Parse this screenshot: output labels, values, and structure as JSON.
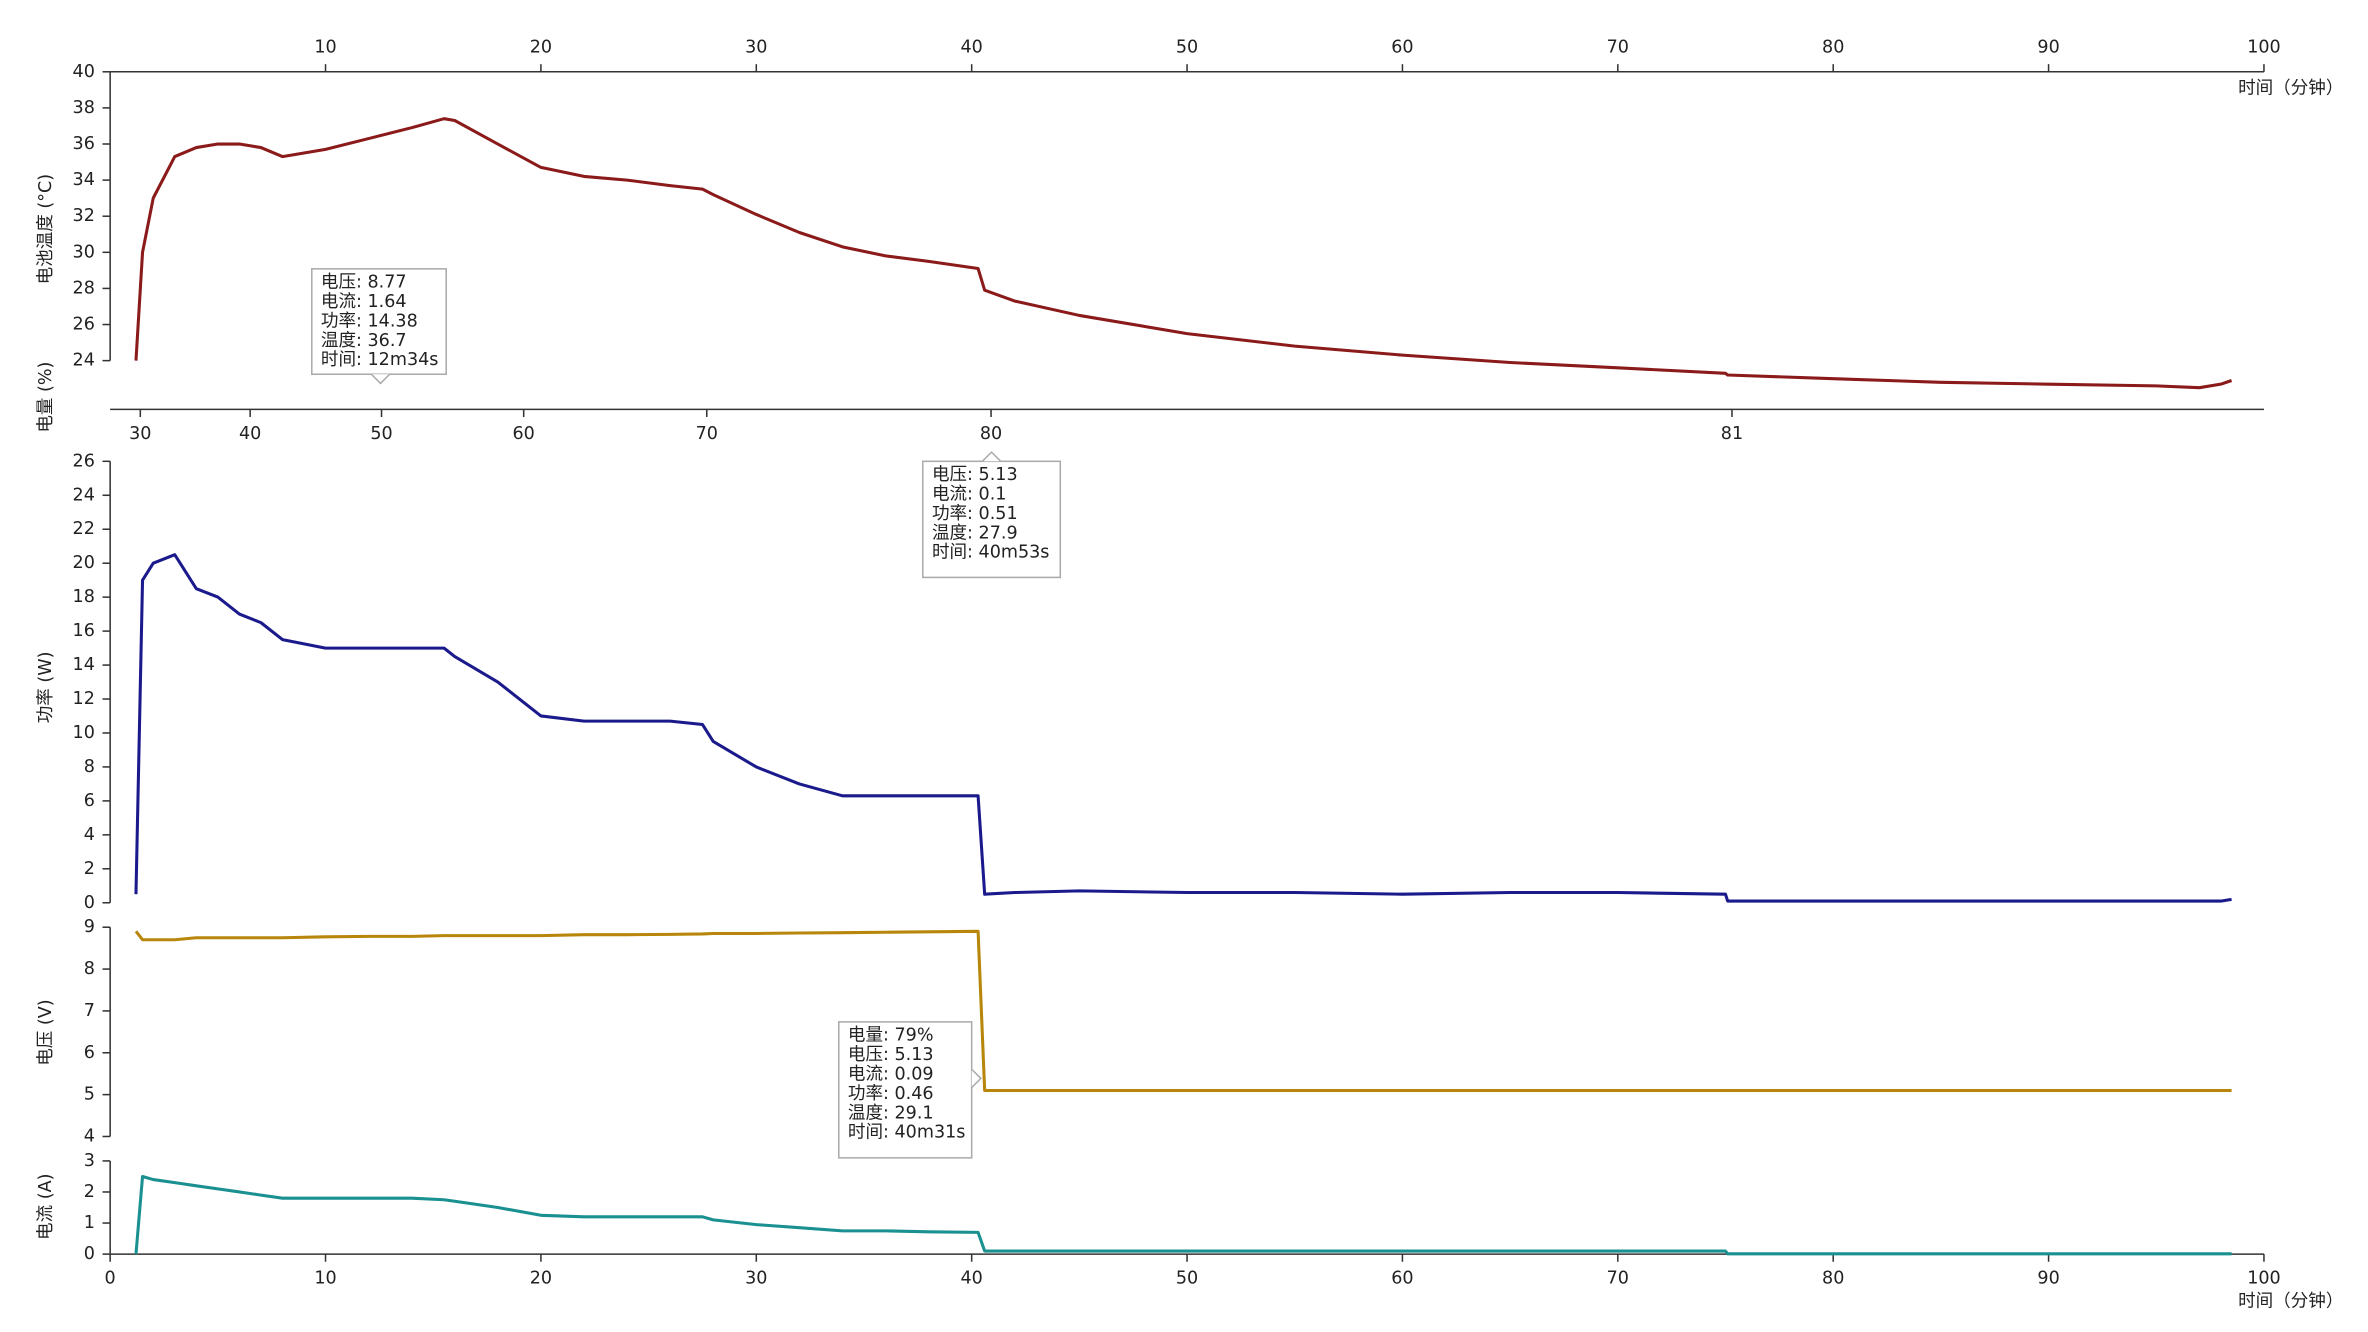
{
  "chart_data": [
    {
      "type": "line",
      "ylabel": "电池温度 (°C)",
      "xlabel": "时间（分钟）",
      "color": "#8b1a1a",
      "xlim": [
        0,
        100
      ],
      "xticks": [
        10,
        20,
        30,
        40,
        50,
        60,
        70,
        80,
        90,
        100
      ],
      "ylim": [
        21.3,
        40
      ],
      "yticks": [
        24,
        26,
        28,
        30,
        32,
        34,
        36,
        38,
        40
      ],
      "x": [
        1.2,
        1.5,
        2,
        3,
        4,
        5,
        6,
        7,
        8,
        10,
        12,
        14,
        15.5,
        16,
        18,
        20,
        22,
        24,
        26,
        27.5,
        28,
        30,
        32,
        34,
        36,
        38,
        40.3,
        40.6,
        42,
        45,
        50,
        55,
        60,
        65,
        70,
        75,
        75.1,
        80,
        85,
        90,
        95,
        97,
        98,
        98.5
      ],
      "values": [
        24,
        30,
        33,
        35.3,
        35.8,
        36,
        36,
        35.8,
        35.3,
        35.7,
        36.3,
        36.9,
        37.4,
        37.3,
        36,
        34.7,
        34.2,
        34,
        33.7,
        33.5,
        33.2,
        32.1,
        31.1,
        30.3,
        29.8,
        29.5,
        29.1,
        27.9,
        27.3,
        26.5,
        25.5,
        24.8,
        24.3,
        23.9,
        23.6,
        23.3,
        23.2,
        23,
        22.8,
        22.7,
        22.6,
        22.5,
        22.7,
        22.9
      ],
      "battery_axis": {
        "label": "电量 (%)",
        "x": [
          1.4,
          6.5,
          12.6,
          19.2,
          27.7,
          40.9,
          75.3
        ],
        "values": [
          30,
          40,
          50,
          60,
          70,
          80,
          81
        ]
      }
    },
    {
      "type": "line",
      "ylabel": "功率 (W)",
      "color": "#1a1a8c",
      "xlim": [
        0,
        100
      ],
      "ylim": [
        0,
        26
      ],
      "yticks": [
        0,
        2,
        4,
        6,
        8,
        10,
        12,
        14,
        16,
        18,
        20,
        22,
        24,
        26
      ],
      "x": [
        1.2,
        1.5,
        2,
        3,
        4,
        5,
        6,
        7,
        8,
        10,
        12,
        14,
        15.5,
        16,
        18,
        20,
        22,
        24,
        26,
        27.5,
        28,
        30,
        32,
        34,
        36,
        38,
        40.3,
        40.6,
        42,
        45,
        50,
        55,
        60,
        65,
        70,
        75,
        75.1,
        80,
        85,
        90,
        95,
        97,
        98,
        98.5
      ],
      "values": [
        0.5,
        19,
        20,
        20.5,
        18.5,
        18,
        17,
        16.5,
        15.5,
        15,
        15,
        15,
        15,
        14.5,
        13,
        11,
        10.7,
        10.7,
        10.7,
        10.5,
        9.5,
        8,
        7,
        6.3,
        6.3,
        6.3,
        6.3,
        0.5,
        0.6,
        0.7,
        0.6,
        0.6,
        0.5,
        0.6,
        0.6,
        0.5,
        0.1,
        0.1,
        0.1,
        0.1,
        0.1,
        0.1,
        0.1,
        0.2
      ]
    },
    {
      "type": "line",
      "ylabel": "电压 (V)",
      "color": "#b8860b",
      "xlim": [
        0,
        100
      ],
      "ylim": [
        4,
        9
      ],
      "yticks": [
        4,
        5,
        6,
        7,
        8,
        9
      ],
      "x": [
        1.2,
        1.5,
        2,
        3,
        4,
        5,
        6,
        7,
        8,
        10,
        12,
        14,
        15.5,
        16,
        18,
        20,
        22,
        24,
        26,
        27.5,
        28,
        30,
        32,
        34,
        36,
        38,
        40.3,
        40.6,
        42,
        45,
        50,
        55,
        60,
        65,
        70,
        75,
        75.1,
        80,
        85,
        90,
        95,
        97,
        98,
        98.5
      ],
      "values": [
        8.9,
        8.7,
        8.7,
        8.7,
        8.75,
        8.75,
        8.75,
        8.75,
        8.75,
        8.77,
        8.78,
        8.78,
        8.8,
        8.8,
        8.8,
        8.8,
        8.82,
        8.82,
        8.83,
        8.84,
        8.85,
        8.85,
        8.86,
        8.87,
        8.88,
        8.89,
        8.9,
        5.1,
        5.1,
        5.1,
        5.1,
        5.1,
        5.1,
        5.1,
        5.1,
        5.1,
        5.1,
        5.1,
        5.1,
        5.1,
        5.1,
        5.1,
        5.1,
        5.1
      ]
    },
    {
      "type": "line",
      "ylabel": "电流 (A)",
      "xlabel": "时间（分钟）",
      "color": "#1a9090",
      "xlim": [
        0,
        100
      ],
      "xticks": [
        0,
        10,
        20,
        30,
        40,
        50,
        60,
        70,
        80,
        90,
        100
      ],
      "ylim": [
        0,
        3
      ],
      "yticks": [
        0,
        1,
        2,
        3
      ],
      "x": [
        1.2,
        1.5,
        2,
        3,
        4,
        5,
        6,
        7,
        8,
        10,
        12,
        14,
        15.5,
        16,
        18,
        20,
        22,
        24,
        26,
        27.5,
        28,
        30,
        32,
        34,
        36,
        38,
        40.3,
        40.6,
        42,
        45,
        50,
        55,
        60,
        65,
        70,
        75,
        75.1,
        80,
        85,
        90,
        95,
        97,
        98,
        98.5
      ],
      "values": [
        0,
        2.5,
        2.4,
        2.3,
        2.2,
        2.1,
        2,
        1.9,
        1.8,
        1.8,
        1.8,
        1.8,
        1.75,
        1.7,
        1.5,
        1.25,
        1.2,
        1.2,
        1.2,
        1.2,
        1.1,
        0.95,
        0.85,
        0.75,
        0.75,
        0.72,
        0.7,
        0.1,
        0.1,
        0.1,
        0.1,
        0.1,
        0.1,
        0.1,
        0.1,
        0.1,
        0.01,
        0.01,
        0.01,
        0.01,
        0.01,
        0.01,
        0.01,
        0.01
      ]
    }
  ],
  "tooltips": [
    {
      "lines": [
        "电压: 8.77",
        "电流: 1.64",
        "功率: 14.38",
        "温度: 36.7",
        "时间: 12m34s"
      ]
    },
    {
      "lines": [
        "电压: 5.13",
        "电流: 0.1",
        "功率: 0.51",
        "温度: 27.9",
        "时间: 40m53s"
      ]
    },
    {
      "lines": [
        "电量: 79%",
        "电压: 5.13",
        "电流: 0.09",
        "功率: 0.46",
        "温度: 29.1",
        "时间: 40m31s"
      ]
    }
  ]
}
